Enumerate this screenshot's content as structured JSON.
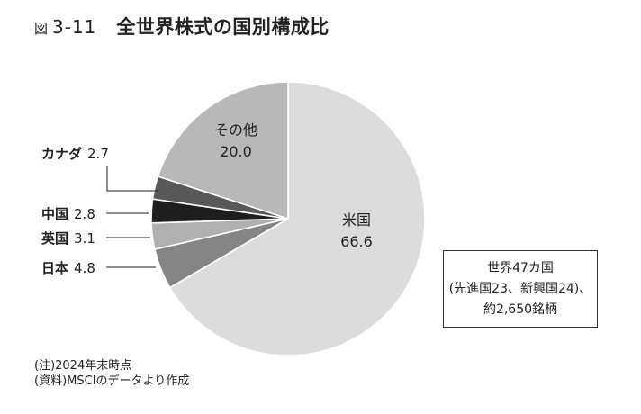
{
  "figure": {
    "prefix": "図",
    "number": "3-11",
    "title": "全世界株式の国別構成比"
  },
  "chart_data": {
    "type": "pie",
    "unit": "%",
    "slices": [
      {
        "label": "米国",
        "value": 66.6,
        "color": "#dcdcdc",
        "label_position": "inside"
      },
      {
        "label": "日本",
        "value": 4.8,
        "color": "#858585",
        "label_position": "outside"
      },
      {
        "label": "英国",
        "value": 3.1,
        "color": "#b0b0b0",
        "label_position": "outside"
      },
      {
        "label": "中国",
        "value": 2.8,
        "color": "#1e1e1e",
        "label_position": "outside"
      },
      {
        "label": "カナダ",
        "value": 2.7,
        "color": "#585858",
        "label_position": "outside"
      },
      {
        "label": "その他",
        "value": 20.0,
        "color": "#b8b8b8",
        "label_position": "inside"
      }
    ],
    "start_angle_deg": 0,
    "direction": "clockwise",
    "slice_border_color": "#ffffff"
  },
  "info_box": {
    "lines": [
      "世界47カ国",
      "(先進国23、新興国24)、",
      "約2,650銘柄"
    ]
  },
  "notes": {
    "note": "(注)2024年末時点",
    "source": "(資料)MSCIのデータより作成"
  }
}
